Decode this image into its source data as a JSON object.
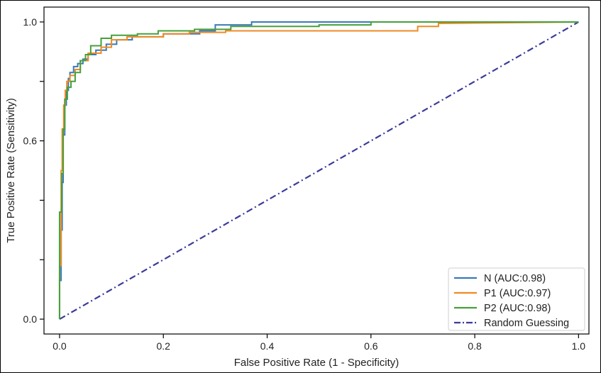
{
  "chart_data": {
    "type": "line",
    "title": "",
    "xlabel": "False Positive Rate (1 - Specificity)",
    "ylabel": "True Positive Rate (Sensitivity)",
    "xlim": [
      -0.03,
      1.02
    ],
    "ylim": [
      -0.05,
      1.05
    ],
    "x_ticks": [
      0.0,
      0.2,
      0.4,
      0.6,
      0.8,
      1.0
    ],
    "x_tick_labels": [
      "0.0",
      "0.2",
      "0.4",
      "0.6",
      "0.8",
      "1.0"
    ],
    "y_ticks": [
      0.0,
      0.2,
      0.4,
      0.6,
      0.8,
      1.0
    ],
    "y_tick_labels": [
      "0.0",
      "",
      "",
      "0.6",
      "",
      "1.0"
    ],
    "grid": false,
    "legend_position": "bottom-right",
    "series": [
      {
        "name": "N (AUC:0.98)",
        "color": "#3a7ab5",
        "style": "solid",
        "points": [
          [
            0.0,
            0.0
          ],
          [
            0.0,
            0.13
          ],
          [
            0.003,
            0.13
          ],
          [
            0.003,
            0.3
          ],
          [
            0.005,
            0.3
          ],
          [
            0.005,
            0.46
          ],
          [
            0.007,
            0.46
          ],
          [
            0.007,
            0.62
          ],
          [
            0.01,
            0.62
          ],
          [
            0.01,
            0.72
          ],
          [
            0.013,
            0.72
          ],
          [
            0.013,
            0.77
          ],
          [
            0.017,
            0.77
          ],
          [
            0.017,
            0.81
          ],
          [
            0.02,
            0.81
          ],
          [
            0.02,
            0.83
          ],
          [
            0.027,
            0.83
          ],
          [
            0.027,
            0.85
          ],
          [
            0.035,
            0.85
          ],
          [
            0.035,
            0.86
          ],
          [
            0.045,
            0.86
          ],
          [
            0.045,
            0.875
          ],
          [
            0.055,
            0.875
          ],
          [
            0.055,
            0.89
          ],
          [
            0.07,
            0.89
          ],
          [
            0.07,
            0.905
          ],
          [
            0.09,
            0.905
          ],
          [
            0.09,
            0.925
          ],
          [
            0.11,
            0.925
          ],
          [
            0.11,
            0.94
          ],
          [
            0.14,
            0.94
          ],
          [
            0.14,
            0.95
          ],
          [
            0.2,
            0.95
          ],
          [
            0.2,
            0.96
          ],
          [
            0.27,
            0.96
          ],
          [
            0.27,
            0.97
          ],
          [
            0.3,
            0.97
          ],
          [
            0.3,
            0.99
          ],
          [
            0.37,
            0.99
          ],
          [
            0.37,
            1.0
          ],
          [
            1.0,
            1.0
          ]
        ]
      },
      {
        "name": "P1 (AUC:0.97)",
        "color": "#f08a24",
        "style": "solid",
        "points": [
          [
            0.0,
            0.0
          ],
          [
            0.0,
            0.18
          ],
          [
            0.003,
            0.18
          ],
          [
            0.003,
            0.5
          ],
          [
            0.005,
            0.5
          ],
          [
            0.005,
            0.64
          ],
          [
            0.008,
            0.64
          ],
          [
            0.008,
            0.72
          ],
          [
            0.011,
            0.72
          ],
          [
            0.011,
            0.77
          ],
          [
            0.014,
            0.77
          ],
          [
            0.014,
            0.8
          ],
          [
            0.02,
            0.8
          ],
          [
            0.02,
            0.82
          ],
          [
            0.03,
            0.82
          ],
          [
            0.03,
            0.84
          ],
          [
            0.04,
            0.84
          ],
          [
            0.04,
            0.87
          ],
          [
            0.055,
            0.87
          ],
          [
            0.055,
            0.895
          ],
          [
            0.08,
            0.895
          ],
          [
            0.08,
            0.915
          ],
          [
            0.1,
            0.915
          ],
          [
            0.1,
            0.94
          ],
          [
            0.13,
            0.94
          ],
          [
            0.13,
            0.95
          ],
          [
            0.2,
            0.95
          ],
          [
            0.2,
            0.96
          ],
          [
            0.25,
            0.96
          ],
          [
            0.25,
            0.965
          ],
          [
            0.32,
            0.965
          ],
          [
            0.32,
            0.97
          ],
          [
            0.69,
            0.97
          ],
          [
            0.69,
            0.985
          ],
          [
            0.73,
            0.985
          ],
          [
            0.73,
            0.995
          ],
          [
            1.0,
            1.0
          ]
        ]
      },
      {
        "name": "P2 (AUC:0.98)",
        "color": "#46a03c",
        "style": "solid",
        "points": [
          [
            0.0,
            0.0
          ],
          [
            0.0,
            0.36
          ],
          [
            0.004,
            0.36
          ],
          [
            0.004,
            0.49
          ],
          [
            0.007,
            0.49
          ],
          [
            0.007,
            0.64
          ],
          [
            0.01,
            0.64
          ],
          [
            0.01,
            0.74
          ],
          [
            0.015,
            0.74
          ],
          [
            0.015,
            0.78
          ],
          [
            0.022,
            0.78
          ],
          [
            0.022,
            0.8
          ],
          [
            0.03,
            0.8
          ],
          [
            0.03,
            0.83
          ],
          [
            0.04,
            0.83
          ],
          [
            0.04,
            0.87
          ],
          [
            0.05,
            0.87
          ],
          [
            0.05,
            0.89
          ],
          [
            0.06,
            0.89
          ],
          [
            0.06,
            0.92
          ],
          [
            0.08,
            0.92
          ],
          [
            0.08,
            0.945
          ],
          [
            0.1,
            0.945
          ],
          [
            0.1,
            0.955
          ],
          [
            0.15,
            0.955
          ],
          [
            0.15,
            0.96
          ],
          [
            0.19,
            0.96
          ],
          [
            0.19,
            0.97
          ],
          [
            0.26,
            0.97
          ],
          [
            0.26,
            0.975
          ],
          [
            0.33,
            0.975
          ],
          [
            0.33,
            0.985
          ],
          [
            0.5,
            0.985
          ],
          [
            0.5,
            0.99
          ],
          [
            0.6,
            0.99
          ],
          [
            0.6,
            1.0
          ],
          [
            1.0,
            1.0
          ]
        ]
      },
      {
        "name": "Random Guessing",
        "color": "#3b3b9a",
        "style": "dashdot",
        "points": [
          [
            0.0,
            0.0
          ],
          [
            1.0,
            1.0
          ]
        ]
      }
    ]
  }
}
